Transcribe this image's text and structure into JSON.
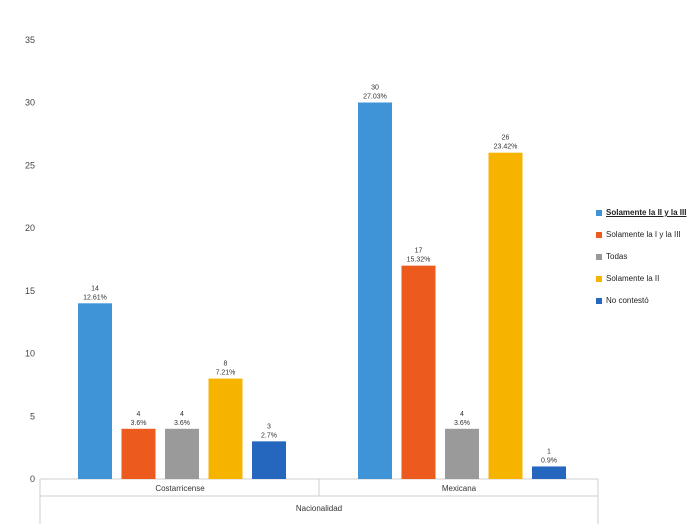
{
  "chart_data": {
    "type": "bar",
    "xlabel": "Nacionalidad",
    "ylim": [
      0,
      35
    ],
    "yticks": [
      0,
      5,
      10,
      15,
      20,
      25,
      30,
      35
    ],
    "categories": [
      "Costarricense",
      "Mexicana"
    ],
    "legend_position": "right",
    "series": [
      {
        "name": "Solamente la II y la III",
        "color": "#3F94D8",
        "values": [
          14,
          30
        ],
        "labels": [
          "12.61%",
          "27.03%"
        ]
      },
      {
        "name": "Solamente la I y la III",
        "color": "#EC5B1D",
        "values": [
          4,
          17
        ],
        "labels": [
          "3.6%",
          "15.32%"
        ]
      },
      {
        "name": "Todas",
        "color": "#9A9A9A",
        "values": [
          4,
          4
        ],
        "labels": [
          "3.6%",
          "3.6%"
        ]
      },
      {
        "name": "Solamente la II",
        "color": "#F6B300",
        "values": [
          8,
          26
        ],
        "labels": [
          "7.21%",
          "23.42%"
        ]
      },
      {
        "name": "No contestó",
        "color": "#2566BE",
        "values": [
          3,
          1
        ],
        "labels": [
          "2.7%",
          "0.9%"
        ]
      }
    ]
  }
}
